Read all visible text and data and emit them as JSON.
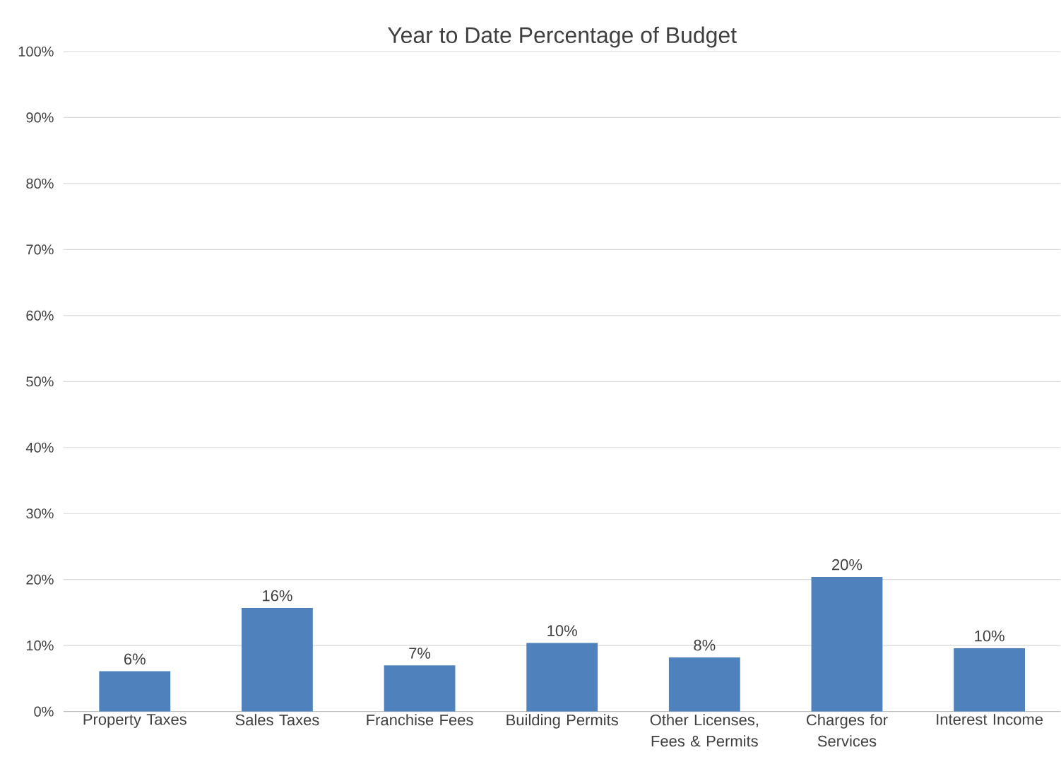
{
  "chart_data": {
    "type": "bar",
    "title": "Year to Date Percentage of Budget",
    "categories": [
      "Property Taxes",
      "Sales Taxes",
      "Franchise Fees",
      "Building Permits",
      "Other Licenses, Fees & Permits",
      "Charges for Services",
      "Interest Income"
    ],
    "values": [
      6.1,
      15.7,
      7.0,
      10.4,
      8.2,
      20.4,
      9.6
    ],
    "value_labels": [
      "6%",
      "16%",
      "7%",
      "10%",
      "8%",
      "20%",
      "10%"
    ],
    "color": "#4f81bd",
    "ylim": [
      0,
      100
    ],
    "yticks": [
      {
        "value": 0,
        "label": "0%"
      },
      {
        "value": 10,
        "label": "10%"
      },
      {
        "value": 20,
        "label": "20%"
      },
      {
        "value": 30,
        "label": "30%"
      },
      {
        "value": 40,
        "label": "40%"
      },
      {
        "value": 50,
        "label": "50%"
      },
      {
        "value": 60,
        "label": "60%"
      },
      {
        "value": 70,
        "label": "70%"
      },
      {
        "value": 80,
        "label": "80%"
      },
      {
        "value": 90,
        "label": "90%"
      },
      {
        "value": 100,
        "label": "100%"
      }
    ],
    "grid": "y"
  }
}
